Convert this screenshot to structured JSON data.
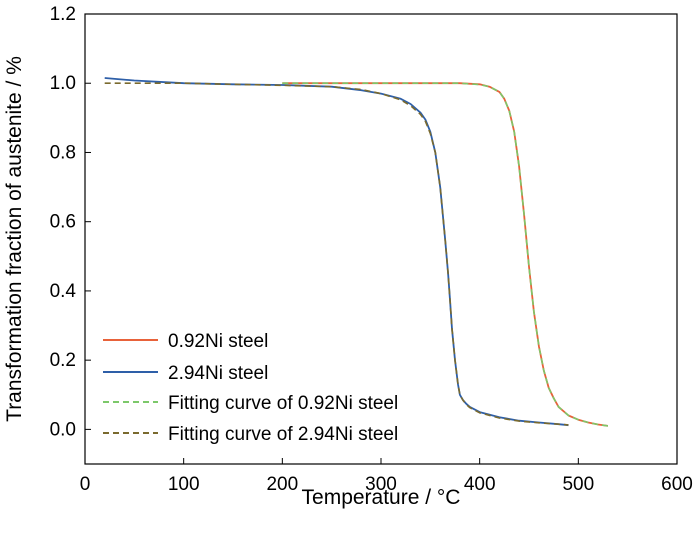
{
  "chart_data": {
    "type": "line",
    "title": "",
    "xlabel": "Temperature / °C",
    "ylabel": "Transformation fraction of austenite / %",
    "xlim": [
      0,
      600
    ],
    "ylim": [
      -0.1,
      1.2
    ],
    "x_ticks": [
      "0",
      "100",
      "200",
      "300",
      "400",
      "500",
      "600"
    ],
    "y_ticks": [
      "0.0",
      "0.2",
      "0.4",
      "0.6",
      "0.8",
      "1.0",
      "1.2"
    ],
    "x_tick_values": [
      0,
      100,
      200,
      300,
      400,
      500,
      600
    ],
    "y_tick_values": [
      0.0,
      0.2,
      0.4,
      0.6,
      0.8,
      1.0,
      1.2
    ],
    "grid": false,
    "legend_position": "bottom-left",
    "series": [
      {
        "name": "0.92Ni steel",
        "color": "#E8623A",
        "dash": "solid",
        "x": [
          200,
          250,
          300,
          350,
          380,
          400,
          410,
          420,
          425,
          430,
          435,
          440,
          445,
          450,
          455,
          460,
          465,
          470,
          475,
          480,
          490,
          500,
          510,
          520,
          530
        ],
        "y": [
          1.0,
          1.0,
          1.0,
          1.0,
          1.0,
          0.997,
          0.99,
          0.975,
          0.955,
          0.92,
          0.86,
          0.76,
          0.62,
          0.47,
          0.34,
          0.24,
          0.17,
          0.12,
          0.09,
          0.065,
          0.04,
          0.028,
          0.02,
          0.014,
          0.01
        ]
      },
      {
        "name": "2.94Ni steel",
        "color": "#2E5FA8",
        "dash": "solid",
        "x": [
          20,
          50,
          100,
          150,
          200,
          250,
          280,
          300,
          320,
          330,
          340,
          345,
          350,
          355,
          360,
          365,
          368,
          370,
          372,
          375,
          378,
          380,
          383,
          386,
          390,
          400,
          420,
          440,
          460,
          480,
          490
        ],
        "y": [
          1.015,
          1.008,
          1.0,
          0.997,
          0.995,
          0.99,
          0.98,
          0.97,
          0.955,
          0.94,
          0.915,
          0.895,
          0.86,
          0.8,
          0.7,
          0.55,
          0.45,
          0.37,
          0.29,
          0.2,
          0.13,
          0.1,
          0.085,
          0.075,
          0.065,
          0.05,
          0.035,
          0.025,
          0.02,
          0.015,
          0.012
        ]
      },
      {
        "name": "Fitting curve of 0.92Ni steel",
        "color": "#7CC86A",
        "dash": "dashed",
        "x": [
          200,
          250,
          300,
          350,
          380,
          400,
          410,
          420,
          425,
          430,
          435,
          440,
          445,
          450,
          455,
          460,
          465,
          470,
          475,
          480,
          490,
          500,
          510,
          520,
          530
        ],
        "y": [
          1.0,
          1.0,
          1.0,
          1.0,
          1.0,
          0.996,
          0.99,
          0.975,
          0.955,
          0.92,
          0.86,
          0.76,
          0.62,
          0.47,
          0.34,
          0.24,
          0.17,
          0.12,
          0.09,
          0.065,
          0.04,
          0.028,
          0.02,
          0.014,
          0.01
        ]
      },
      {
        "name": "Fitting curve of 2.94Ni steel",
        "color": "#7A6A2E",
        "dash": "dashed",
        "x": [
          20,
          50,
          100,
          150,
          200,
          250,
          280,
          300,
          320,
          330,
          340,
          345,
          350,
          355,
          360,
          365,
          368,
          370,
          372,
          375,
          378,
          380,
          383,
          386,
          390,
          400,
          420,
          440,
          460,
          480,
          490
        ],
        "y": [
          1.0,
          1.0,
          1.0,
          0.997,
          0.994,
          0.99,
          0.982,
          0.97,
          0.952,
          0.935,
          0.91,
          0.89,
          0.855,
          0.8,
          0.7,
          0.55,
          0.45,
          0.37,
          0.29,
          0.2,
          0.13,
          0.1,
          0.085,
          0.073,
          0.063,
          0.048,
          0.033,
          0.024,
          0.019,
          0.015,
          0.013
        ]
      }
    ]
  }
}
